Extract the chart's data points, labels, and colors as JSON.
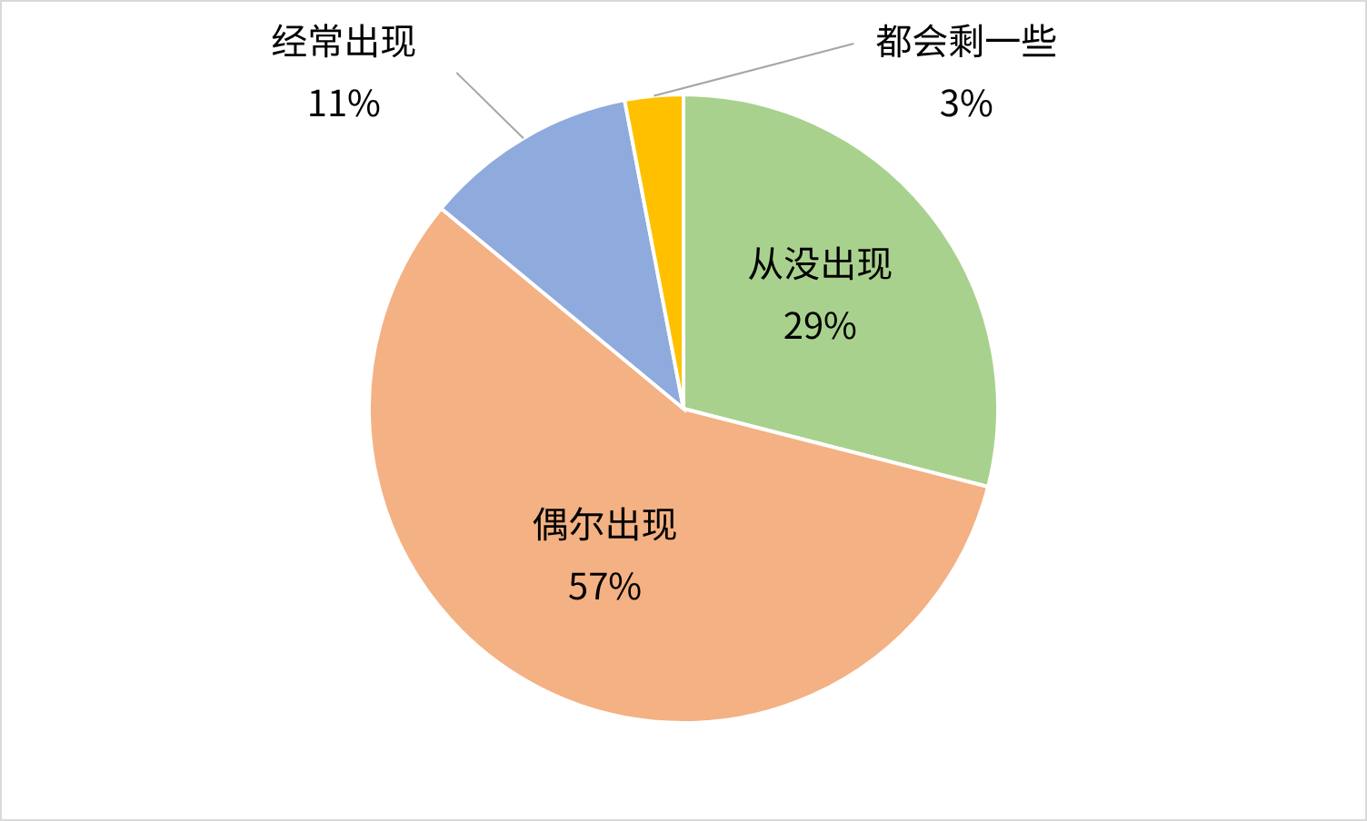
{
  "chart_data": {
    "type": "pie",
    "categories": [
      "从没出现",
      "偶尔出现",
      "经常出现",
      "都会剩一些"
    ],
    "values": [
      29,
      57,
      11,
      3
    ],
    "colors": [
      "#a9d18e",
      "#f4b183",
      "#8faadc",
      "#ffc000"
    ],
    "value_labels": [
      "29%",
      "57%",
      "11%",
      "3%"
    ]
  }
}
